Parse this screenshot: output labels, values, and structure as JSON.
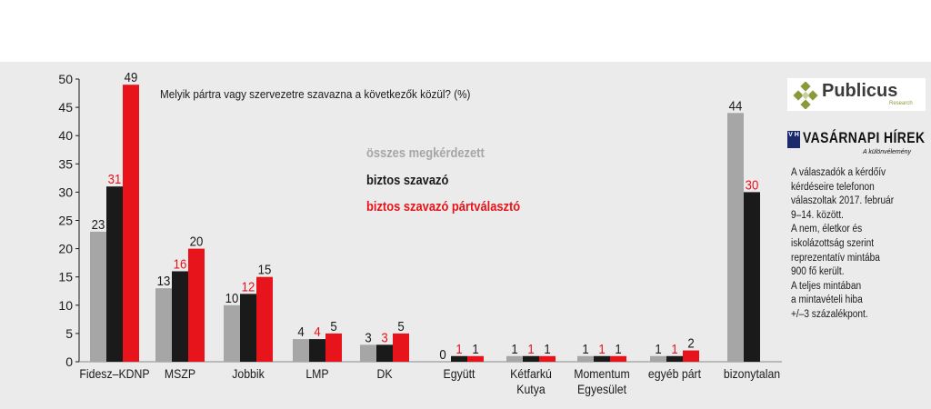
{
  "chart_data": {
    "type": "bar",
    "title": "Melyik pártra vagy szervezetre szavazna a következők közül? (%)",
    "categories": [
      [
        "Fidesz–KDNP"
      ],
      [
        "MSZP"
      ],
      [
        "Jobbik"
      ],
      [
        "LMP"
      ],
      [
        "DK"
      ],
      [
        "Együtt"
      ],
      [
        "Kétfarkú",
        "Kutya"
      ],
      [
        "Momentum",
        "Egyesület"
      ],
      [
        "egyéb párt"
      ],
      [
        "bizonytalan"
      ]
    ],
    "series": [
      {
        "name": "összes megkérdezett",
        "color": "#a6a6a6",
        "label_color": "#1a1a1a",
        "values": [
          23,
          13,
          10,
          4,
          3,
          0,
          1,
          1,
          1,
          44
        ]
      },
      {
        "name": "biztos szavazó",
        "color": "#1a1a1a",
        "label_color": "#1a1a1a",
        "values": [
          31,
          16,
          12,
          4,
          3,
          1,
          1,
          1,
          1,
          30
        ]
      },
      {
        "name": "biztos szavazó pártválasztó",
        "color": "#e8141c",
        "label_color": "#1a1a1a",
        "values": [
          49,
          20,
          15,
          5,
          5,
          1,
          1,
          1,
          2,
          null
        ]
      }
    ],
    "value_labels": [
      [
        "23",
        "31",
        "49"
      ],
      [
        "13",
        "16",
        "20"
      ],
      [
        "10",
        "12",
        "15"
      ],
      [
        "4",
        "4",
        "5"
      ],
      [
        "3",
        "3",
        "5"
      ],
      [
        "0",
        "1",
        "1"
      ],
      [
        "1",
        "1",
        "1"
      ],
      [
        "1",
        "1",
        "1"
      ],
      [
        "1",
        "1",
        "2"
      ],
      [
        "44",
        "30",
        ""
      ]
    ],
    "value_label_colors": [
      [
        "#1a1a1a",
        "#e8141c",
        "#1a1a1a"
      ],
      [
        "#1a1a1a",
        "#e8141c",
        "#1a1a1a"
      ],
      [
        "#1a1a1a",
        "#e8141c",
        "#1a1a1a"
      ],
      [
        "#1a1a1a",
        "#e8141c",
        "#1a1a1a"
      ],
      [
        "#1a1a1a",
        "#e8141c",
        "#1a1a1a"
      ],
      [
        "#1a1a1a",
        "#e8141c",
        "#1a1a1a"
      ],
      [
        "#1a1a1a",
        "#e8141c",
        "#1a1a1a"
      ],
      [
        "#1a1a1a",
        "#e8141c",
        "#1a1a1a"
      ],
      [
        "#1a1a1a",
        "#e8141c",
        "#1a1a1a"
      ],
      [
        "#1a1a1a",
        "#e8141c",
        "#1a1a1a"
      ]
    ],
    "yticks": [
      "0",
      "5",
      "10",
      "15",
      "20",
      "25",
      "30",
      "35",
      "40",
      "45",
      "50"
    ],
    "ylim": [
      0,
      50
    ],
    "grid": false,
    "legend_position": "inside-center"
  },
  "legend": {
    "item1": "összes megkérdezett",
    "item2": "biztos szavazó",
    "item3": "biztos szavazó pártválasztó",
    "color1": "#a6a6a6",
    "color2": "#1a1a1a",
    "color3": "#e8141c"
  },
  "logos": {
    "publicus": "Publicus",
    "publicus_sub": "Research",
    "vh_badge": "V H",
    "vh_title": "VASÁRNAPI HÍREK",
    "vh_sub": "A különvélemény"
  },
  "note": {
    "lines": [
      "A válaszadók a kérdőív",
      "kérdéseire telefonon",
      "válaszoltak 2017. február",
      "9–14. között.",
      "A nem, életkor és",
      "iskolázottság szerint",
      "reprezentatív mintába",
      "900 fő került.",
      "A teljes mintában",
      "a mintavételi hiba",
      "+/–3 százalékpont."
    ]
  }
}
